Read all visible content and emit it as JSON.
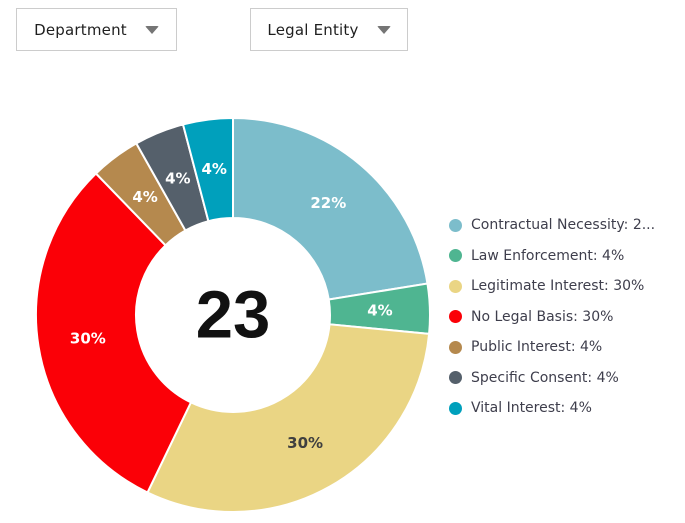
{
  "page": {
    "background": "#ffffff"
  },
  "filters": [
    {
      "label": "Department"
    },
    {
      "label": "Legal Entity"
    }
  ],
  "chart_data": {
    "type": "pie",
    "subtype": "donut",
    "title": "",
    "center_total": "23",
    "start_angle_deg": 0,
    "direction": "clockwise",
    "legend_position": "right",
    "separator_color": "#ffffff",
    "slices": [
      {
        "label": "Contractual Necessity",
        "pct": 22,
        "color": "#7CBDCB",
        "slice_label": "22%",
        "slice_label_color": "#ffffff",
        "legend_text": "Contractual Necessity: 2..."
      },
      {
        "label": "Law Enforcement",
        "pct": 4,
        "color": "#4FB591",
        "slice_label": "4%",
        "slice_label_color": "#ffffff",
        "legend_text": "Law Enforcement: 4%"
      },
      {
        "label": "Legitimate Interest",
        "pct": 30,
        "color": "#EAD584",
        "slice_label": "30%",
        "slice_label_color": "#3f3f3f",
        "legend_text": "Legitimate Interest: 30%"
      },
      {
        "label": "No Legal Basis",
        "pct": 30,
        "color": "#FB0007",
        "slice_label": "30%",
        "slice_label_color": "#ffffff",
        "legend_text": "No Legal Basis: 30%"
      },
      {
        "label": "Public Interest",
        "pct": 4,
        "color": "#B5894E",
        "slice_label": "4%",
        "slice_label_color": "#ffffff",
        "legend_text": "Public Interest: 4%"
      },
      {
        "label": "Specific Consent",
        "pct": 4,
        "color": "#55606B",
        "slice_label": "4%",
        "slice_label_color": "#ffffff",
        "legend_text": "Specific Consent: 4%"
      },
      {
        "label": "Vital Interest",
        "pct": 4,
        "color": "#00A0BC",
        "slice_label": "4%",
        "slice_label_color": "#ffffff",
        "legend_text": "Vital Interest: 4%"
      }
    ]
  }
}
